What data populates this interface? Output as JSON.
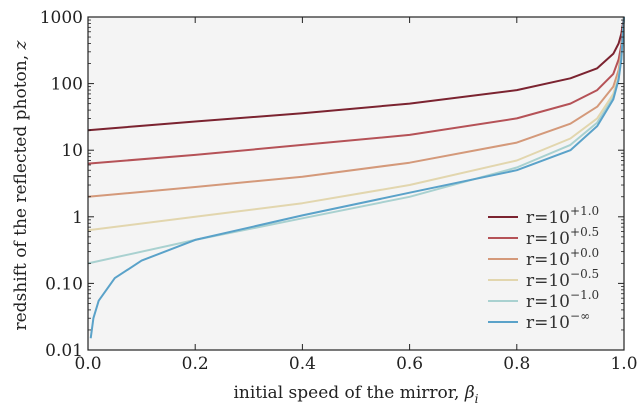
{
  "chart_data": {
    "type": "line",
    "xlabel": "initial speed of the mirror, ",
    "xlabel_symbol": "β",
    "xlabel_sub": "i",
    "ylabel": "redshift of the reflected photon, ",
    "ylabel_symbol": "z",
    "xlim": [
      0.0,
      1.0
    ],
    "ylim": [
      0.01,
      1000
    ],
    "yscale": "log",
    "x_ticks": [
      0.0,
      0.2,
      0.4,
      0.6,
      0.8,
      1.0
    ],
    "x_tick_labels": [
      "0.0",
      "0.2",
      "0.4",
      "0.6",
      "0.8",
      "1.0"
    ],
    "y_ticks": [
      0.01,
      0.1,
      1,
      10,
      100,
      1000
    ],
    "y_tick_labels": [
      "0.01",
      "0.10",
      "1",
      "10",
      "100",
      "1000"
    ],
    "grid": false,
    "legend_position": "bottom-right",
    "background": "#f4f4f4",
    "series": [
      {
        "name": "r=10",
        "exponent": "+1.0",
        "color": "#7b2330",
        "x": [
          0.0,
          0.2,
          0.4,
          0.6,
          0.8,
          0.9,
          0.95,
          0.98,
          0.99,
          0.995,
          1.0
        ],
        "values": [
          20,
          27,
          36,
          50,
          80,
          120,
          170,
          280,
          400,
          560,
          1000
        ]
      },
      {
        "name": "r=10",
        "exponent": "+0.5",
        "color": "#b55257",
        "x": [
          0.0,
          0.2,
          0.4,
          0.6,
          0.8,
          0.9,
          0.95,
          0.98,
          0.99,
          0.995,
          1.0
        ],
        "values": [
          6.3,
          8.5,
          12,
          17,
          30,
          50,
          80,
          140,
          230,
          380,
          1000
        ]
      },
      {
        "name": "r=10",
        "exponent": "+0.0",
        "color": "#d4997a",
        "x": [
          0.0,
          0.2,
          0.4,
          0.6,
          0.8,
          0.9,
          0.95,
          0.98,
          0.99,
          0.995,
          1.0
        ],
        "values": [
          2.0,
          2.8,
          4.0,
          6.5,
          13,
          25,
          45,
          90,
          160,
          300,
          1000
        ]
      },
      {
        "name": "r=10",
        "exponent": "−0.5",
        "color": "#e2d6ae",
        "x": [
          0.0,
          0.2,
          0.4,
          0.6,
          0.8,
          0.9,
          0.95,
          0.98,
          0.99,
          0.995,
          1.0
        ],
        "values": [
          0.63,
          1.0,
          1.6,
          3.0,
          7.0,
          15,
          30,
          70,
          130,
          260,
          1000
        ]
      },
      {
        "name": "r=10",
        "exponent": "−1.0",
        "color": "#a9d1d0",
        "x": [
          0.0,
          0.2,
          0.4,
          0.6,
          0.8,
          0.9,
          0.95,
          0.98,
          0.99,
          0.995,
          1.0
        ],
        "values": [
          0.2,
          0.45,
          0.95,
          2.0,
          5.5,
          12,
          26,
          62,
          120,
          240,
          1000
        ]
      },
      {
        "name": "r=10",
        "exponent": "−∞",
        "color": "#5aa2c9",
        "x": [
          0.005,
          0.01,
          0.02,
          0.05,
          0.1,
          0.2,
          0.4,
          0.6,
          0.8,
          0.9,
          0.95,
          0.98,
          0.99,
          0.995,
          1.0
        ],
        "values": [
          0.015,
          0.03,
          0.055,
          0.12,
          0.22,
          0.45,
          1.05,
          2.3,
          5.0,
          10,
          23,
          58,
          115,
          230,
          1000
        ]
      }
    ]
  }
}
